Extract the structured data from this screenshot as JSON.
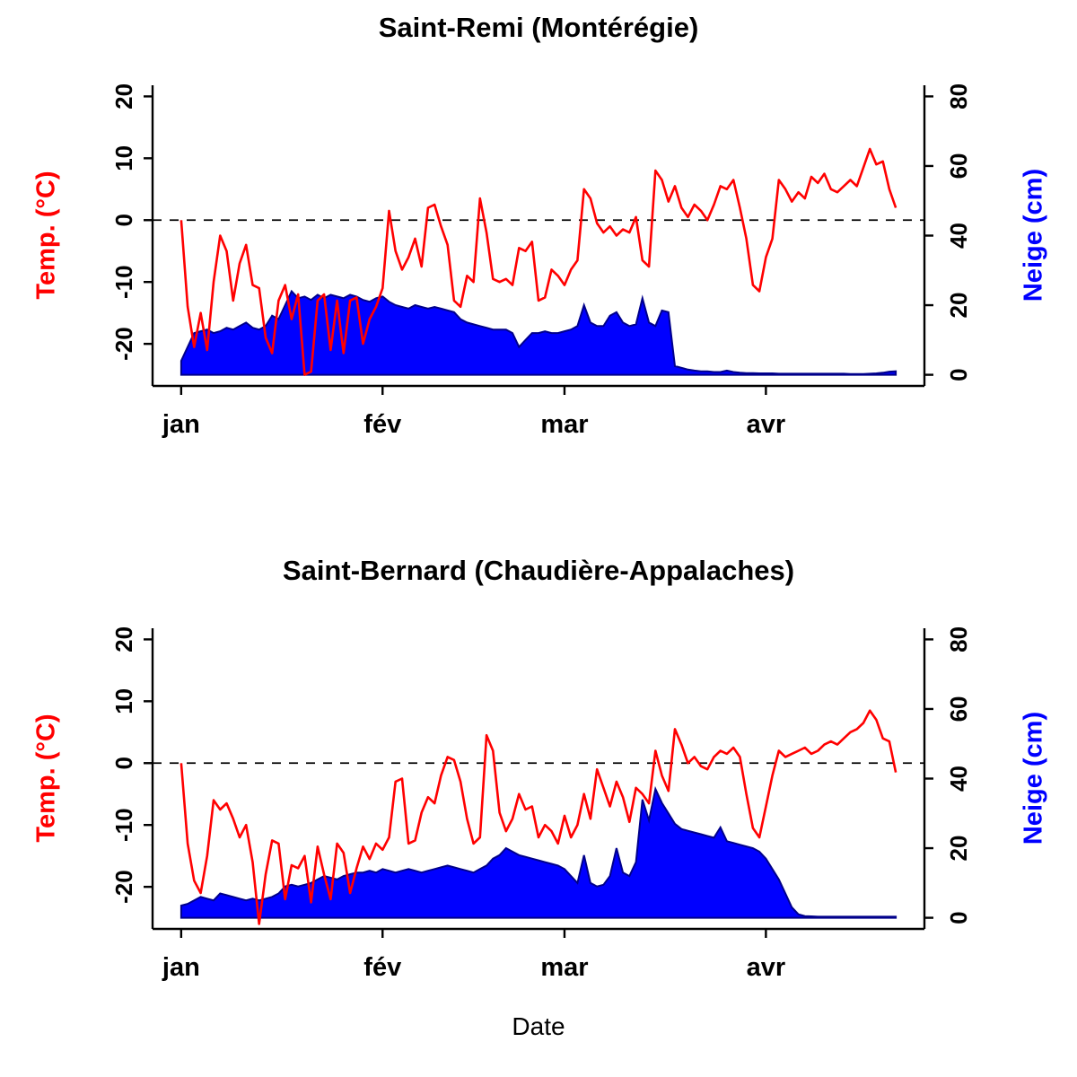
{
  "page": {
    "background": "#ffffff",
    "xlabel": "Date"
  },
  "chart_data": [
    {
      "type": "line",
      "subtype": "dual-axis line + filled area, daily winter weather",
      "title": "Saint-Remi (Montérégie)",
      "ylabel_left": "Temp. (°C)",
      "ylabel_right": "Neige (cm)",
      "ylabel_left_color": "#ff0000",
      "ylabel_right_color": "#0000ff",
      "x_ticks": [
        {
          "day": 0,
          "label": "jan"
        },
        {
          "day": 31,
          "label": "fév"
        },
        {
          "day": 59,
          "label": "mar"
        },
        {
          "day": 90,
          "label": "avr"
        }
      ],
      "ylim_left": [
        -25,
        20
      ],
      "yticks_left": [
        -20,
        -10,
        0,
        10,
        20
      ],
      "ylim_right": [
        0,
        80
      ],
      "yticks_right": [
        0,
        20,
        40,
        60,
        80
      ],
      "zero_line_dashed": true,
      "grid": false,
      "legend": "none",
      "series": [
        {
          "name": "Temp. (°C)",
          "type": "line",
          "axis": "left",
          "color": "#ff0000",
          "values": [
            0,
            -14,
            -20.5,
            -15,
            -21,
            -10,
            -2.5,
            -5,
            -13,
            -7,
            -4,
            -10.5,
            -11,
            -19,
            -21.5,
            -13,
            -10.5,
            -16,
            -12,
            -25,
            -24.5,
            -13,
            -12,
            -21,
            -13,
            -21.5,
            -13,
            -12.5,
            -20,
            -16,
            -14,
            -11,
            1.5,
            -5,
            -8,
            -6,
            -3,
            -7.5,
            2,
            2.5,
            -1,
            -4,
            -13,
            -14,
            -9,
            -10,
            3.5,
            -2,
            -9.5,
            -10,
            -9.5,
            -10.5,
            -4.5,
            -5,
            -3.5,
            -13,
            -12.5,
            -8,
            -9,
            -10.5,
            -8,
            -6.5,
            5,
            3.5,
            -0.5,
            -2,
            -1,
            -2.5,
            -1.5,
            -2,
            0.5,
            -6.5,
            -7.5,
            8,
            6.5,
            3,
            5.5,
            2,
            0.5,
            2.5,
            1.5,
            0,
            2.5,
            5.5,
            5,
            6.5,
            2,
            -3,
            -10.5,
            -11.5,
            -6,
            -3,
            6.5,
            5,
            3,
            4.5,
            3.5,
            7,
            6,
            7.5,
            5,
            4.5,
            5.5,
            6.5,
            5.5,
            8.5,
            11.5,
            9,
            9.5,
            5,
            2
          ]
        },
        {
          "name": "Neige (cm)",
          "type": "area",
          "axis": "right",
          "color": "#0000ff",
          "border": "#00008b",
          "values": [
            4,
            8,
            12,
            12.5,
            13,
            12,
            12.5,
            13.5,
            13,
            14,
            15,
            13.5,
            13,
            14,
            17,
            16,
            20,
            24,
            22,
            22.5,
            21.5,
            23,
            22,
            23,
            22.5,
            22,
            23,
            22.5,
            21.5,
            21,
            22,
            22.5,
            21,
            20,
            19.5,
            19,
            20,
            19.5,
            19,
            19.5,
            19,
            18.5,
            18,
            16,
            15,
            14.5,
            14,
            13.5,
            13,
            13,
            13,
            12,
            8,
            10,
            12,
            12,
            12.5,
            12,
            12,
            12.5,
            13,
            14,
            20,
            15,
            14,
            14,
            17,
            18,
            15,
            14,
            14.5,
            22,
            15,
            14,
            18.5,
            18,
            2.5,
            2,
            1.5,
            1.2,
            1,
            1,
            0.8,
            0.8,
            1.2,
            0.8,
            0.6,
            0.5,
            0.5,
            0.4,
            0.4,
            0.4,
            0.3,
            0.3,
            0.3,
            0.3,
            0.3,
            0.3,
            0.3,
            0.3,
            0.3,
            0.3,
            0.3,
            0.2,
            0.2,
            0.2,
            0.3,
            0.4,
            0.6,
            0.9,
            1
          ]
        }
      ]
    },
    {
      "type": "line",
      "subtype": "dual-axis line + filled area, daily winter weather",
      "title": "Saint-Bernard (Chaudière-Appalaches)",
      "ylabel_left": "Temp. (°C)",
      "ylabel_right": "Neige (cm)",
      "ylabel_left_color": "#ff0000",
      "ylabel_right_color": "#0000ff",
      "x_ticks": [
        {
          "day": 0,
          "label": "jan"
        },
        {
          "day": 31,
          "label": "fév"
        },
        {
          "day": 59,
          "label": "mar"
        },
        {
          "day": 90,
          "label": "avr"
        }
      ],
      "ylim_left": [
        -25,
        20
      ],
      "yticks_left": [
        -20,
        -10,
        0,
        10,
        20
      ],
      "ylim_right": [
        0,
        80
      ],
      "yticks_right": [
        0,
        20,
        40,
        60,
        80
      ],
      "zero_line_dashed": true,
      "grid": false,
      "legend": "none",
      "series": [
        {
          "name": "Temp. (°C)",
          "type": "line",
          "axis": "left",
          "color": "#ff0000",
          "values": [
            0,
            -13,
            -19,
            -21,
            -15,
            -6,
            -7.5,
            -6.5,
            -9,
            -12,
            -10,
            -16,
            -26,
            -18,
            -12.5,
            -13,
            -22,
            -16.5,
            -17,
            -15,
            -22.5,
            -13.5,
            -18,
            -22,
            -13,
            -14.5,
            -21,
            -17,
            -13.5,
            -15.5,
            -13,
            -14,
            -12,
            -3,
            -2.5,
            -13,
            -12.5,
            -8,
            -5.5,
            -6.5,
            -2,
            1,
            0.5,
            -3,
            -9,
            -13,
            -12,
            4.5,
            2,
            -8,
            -11,
            -9,
            -5,
            -7.5,
            -7,
            -12,
            -10,
            -11,
            -13,
            -8.5,
            -12,
            -10,
            -5,
            -9,
            -1,
            -4,
            -7,
            -3,
            -5.5,
            -9.5,
            -4,
            -5,
            -6.5,
            2,
            -2,
            -4.5,
            5.5,
            3,
            0,
            1,
            -0.5,
            -1,
            1,
            2,
            1.5,
            2.5,
            1,
            -5,
            -10.5,
            -12,
            -7,
            -2,
            2,
            1,
            1.5,
            2,
            2.5,
            1.5,
            2,
            3,
            3.5,
            3,
            4,
            5,
            5.5,
            6.5,
            8.5,
            7,
            4,
            3.5,
            -1.5
          ]
        },
        {
          "name": "Neige (cm)",
          "type": "area",
          "axis": "right",
          "color": "#0000ff",
          "border": "#00008b",
          "values": [
            3.5,
            4,
            5,
            6,
            5.5,
            5,
            7,
            6.5,
            6,
            5.5,
            5,
            5.5,
            5,
            5.5,
            6,
            7,
            9,
            9.5,
            9,
            9.5,
            10,
            11,
            12,
            11.5,
            11,
            12,
            12.5,
            13,
            13,
            13.5,
            13,
            14,
            13.5,
            13,
            13.5,
            14,
            13.5,
            13,
            13.5,
            14,
            14.5,
            15,
            14.5,
            14,
            13.5,
            13,
            14,
            15,
            17,
            18,
            20,
            19,
            18,
            17.5,
            17,
            16.5,
            16,
            15.5,
            15,
            14,
            12,
            10,
            18,
            10,
            9,
            9.5,
            12,
            20,
            13,
            12,
            16,
            34,
            28,
            37,
            33,
            30,
            27,
            25.5,
            25,
            24.5,
            24,
            23.5,
            23,
            26,
            22,
            21.5,
            21,
            20.5,
            20,
            19,
            17,
            14,
            11,
            7,
            3,
            1,
            0.5,
            0.4,
            0.3,
            0.3,
            0.3,
            0.3,
            0.3,
            0.3,
            0.3,
            0.3,
            0.3,
            0.3,
            0.3,
            0.3,
            0.3
          ]
        }
      ]
    }
  ]
}
